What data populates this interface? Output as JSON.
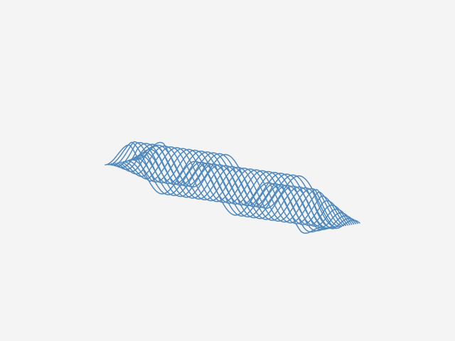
{
  "figure": {
    "kind": "3d-wireframe-sine-ribbon",
    "background_color": "#f4f4f4",
    "line_color": "#4e88bd",
    "line_count": 18,
    "wave_cycles": 3
  }
}
